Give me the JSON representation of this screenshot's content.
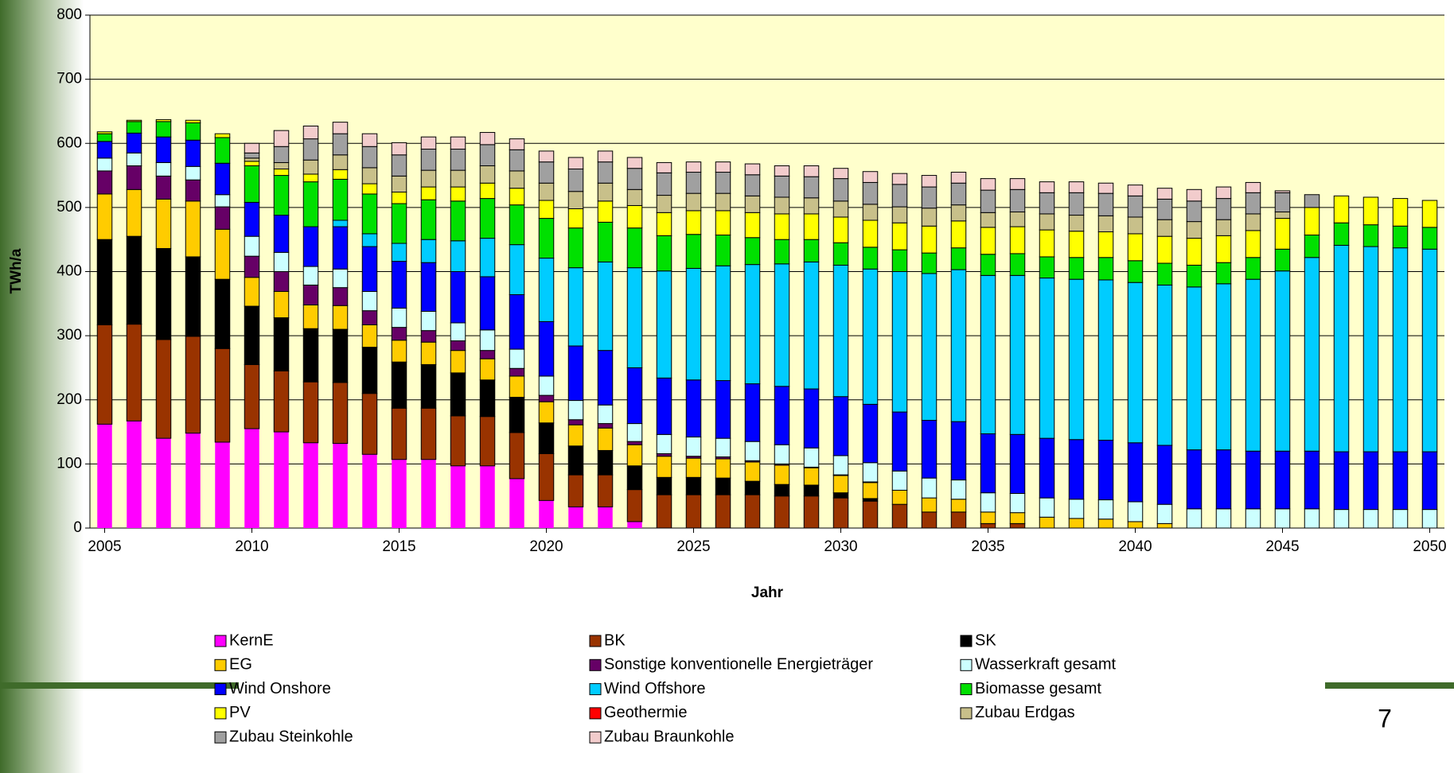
{
  "chart_data": {
    "type": "stacked_bar",
    "page_number": "7",
    "x_label": "Jahr",
    "y_label": "TWh/a",
    "categories": [
      2005,
      null,
      null,
      null,
      null,
      2010,
      null,
      null,
      null,
      null,
      2015,
      null,
      null,
      null,
      null,
      2020,
      null,
      null,
      null,
      null,
      2025,
      null,
      null,
      null,
      null,
      2030,
      null,
      null,
      null,
      null,
      2035,
      null,
      null,
      null,
      null,
      2040,
      null,
      null,
      null,
      null,
      2045,
      null,
      null,
      null,
      null,
      2050
    ],
    "ylim": [
      0,
      800
    ],
    "yticks": [
      0,
      100,
      200,
      300,
      400,
      500,
      600,
      700,
      800
    ],
    "grid": true,
    "legend": "bottom",
    "series": [
      {
        "name": "KernE",
        "color": "#ff00ff",
        "values": [
          162,
          167,
          140,
          148,
          134,
          155,
          150,
          133,
          132,
          115,
          107,
          107,
          97,
          97,
          77,
          43,
          33,
          33,
          10,
          0,
          0,
          0,
          0,
          0,
          0,
          0,
          0,
          0,
          0,
          0,
          0,
          0,
          0,
          0,
          0,
          0,
          0,
          0,
          0,
          0,
          0,
          0,
          0,
          0,
          0,
          0
        ]
      },
      {
        "name": "BK",
        "color": "#993300",
        "values": [
          155,
          151,
          154,
          151,
          146,
          100,
          95,
          95,
          95,
          95,
          80,
          80,
          78,
          77,
          72,
          73,
          50,
          50,
          50,
          52,
          52,
          52,
          52,
          50,
          50,
          47,
          42,
          37,
          25,
          25,
          7,
          7,
          0,
          0,
          0,
          0,
          0,
          0,
          0,
          0,
          0,
          0,
          0,
          0,
          0,
          0
        ]
      },
      {
        "name": "SK",
        "color": "#000000",
        "values": [
          133,
          137,
          142,
          124,
          108,
          91,
          83,
          83,
          83,
          72,
          72,
          68,
          67,
          57,
          55,
          48,
          45,
          38,
          37,
          27,
          27,
          26,
          21,
          18,
          17,
          8,
          4,
          0,
          0,
          0,
          0,
          0,
          0,
          0,
          0,
          0,
          0,
          0,
          0,
          0,
          0,
          0,
          0,
          0,
          0,
          0
        ]
      },
      {
        "name": "EG",
        "color": "#ffcc00",
        "values": [
          71,
          73,
          77,
          87,
          78,
          45,
          41,
          37,
          37,
          35,
          34,
          35,
          35,
          33,
          33,
          33,
          33,
          35,
          33,
          33,
          30,
          30,
          30,
          30,
          27,
          27,
          25,
          22,
          22,
          20,
          18,
          17,
          17,
          15,
          14,
          10,
          7,
          0,
          0,
          0,
          0,
          0,
          0,
          0,
          0,
          0
        ]
      },
      {
        "name": "Sonstige konventionelle Energieträger",
        "color": "#660066",
        "values": [
          36,
          37,
          36,
          33,
          35,
          33,
          31,
          31,
          28,
          22,
          20,
          18,
          15,
          13,
          12,
          10,
          8,
          7,
          5,
          4,
          3,
          3,
          2,
          2,
          1,
          1,
          1,
          0,
          0,
          0,
          0,
          0,
          0,
          0,
          0,
          0,
          0,
          0,
          0,
          0,
          0,
          0,
          0,
          0,
          0,
          0
        ]
      },
      {
        "name": "Wasserkraft gesamt",
        "color": "#ccffff",
        "values": [
          20,
          20,
          21,
          21,
          19,
          31,
          30,
          29,
          29,
          30,
          30,
          30,
          28,
          32,
          30,
          30,
          30,
          29,
          28,
          30,
          30,
          29,
          30,
          30,
          30,
          30,
          30,
          30,
          31,
          30,
          30,
          30,
          30,
          30,
          30,
          31,
          30,
          30,
          30,
          30,
          30,
          30,
          29,
          29,
          29,
          29
        ]
      },
      {
        "name": "Wind Onshore",
        "color": "#0000ff",
        "values": [
          26,
          31,
          40,
          41,
          49,
          53,
          58,
          62,
          66,
          70,
          73,
          76,
          80,
          83,
          85,
          85,
          85,
          85,
          87,
          88,
          89,
          90,
          90,
          91,
          92,
          92,
          91,
          92,
          90,
          91,
          92,
          92,
          93,
          93,
          93,
          92,
          92,
          92,
          92,
          90,
          90,
          90,
          90,
          90,
          90,
          90
        ]
      },
      {
        "name": "Wind Offshore",
        "color": "#00ccff",
        "values": [
          0,
          0,
          0,
          0,
          0,
          0,
          0,
          0,
          10,
          20,
          28,
          36,
          48,
          60,
          78,
          99,
          122,
          138,
          156,
          167,
          174,
          179,
          186,
          191,
          198,
          205,
          211,
          219,
          229,
          237,
          247,
          248,
          250,
          250,
          250,
          250,
          250,
          254,
          259,
          268,
          281,
          302,
          322,
          320,
          318,
          316
        ]
      },
      {
        "name": "Biomasse gesamt",
        "color": "#00e000",
        "values": [
          12,
          18,
          24,
          27,
          40,
          57,
          62,
          70,
          64,
          62,
          62,
          62,
          62,
          62,
          62,
          62,
          62,
          62,
          62,
          55,
          53,
          48,
          42,
          38,
          35,
          35,
          34,
          34,
          32,
          34,
          33,
          34,
          33,
          34,
          35,
          34,
          34,
          34,
          33,
          34,
          34,
          35,
          35,
          34,
          34,
          34
        ]
      },
      {
        "name": "PV",
        "color": "#ffff00",
        "values": [
          3,
          2,
          3,
          4,
          6,
          7,
          10,
          12,
          15,
          16,
          18,
          20,
          22,
          24,
          26,
          28,
          30,
          33,
          35,
          36,
          37,
          38,
          39,
          40,
          40,
          40,
          42,
          42,
          42,
          42,
          42,
          42,
          42,
          41,
          40,
          42,
          42,
          42,
          42,
          42,
          48,
          43,
          42,
          43,
          43,
          42
        ]
      },
      {
        "name": "Geothermie",
        "color": "#ff0000",
        "values": [
          0,
          0,
          0,
          0,
          0,
          0,
          0,
          0,
          0,
          0,
          0,
          0,
          0,
          0,
          0,
          0,
          0,
          0,
          0,
          0,
          0,
          0,
          0,
          0,
          0,
          0,
          0,
          0,
          0,
          0,
          0,
          0,
          0,
          0,
          0,
          0,
          0,
          0,
          0,
          0,
          0,
          0,
          0,
          0,
          0,
          0
        ]
      },
      {
        "name": "Zubau Erdgas",
        "color": "#c8c08a",
        "values": [
          0,
          0,
          0,
          0,
          0,
          5,
          10,
          22,
          23,
          25,
          25,
          26,
          26,
          27,
          27,
          27,
          27,
          28,
          25,
          27,
          27,
          27,
          26,
          26,
          25,
          25,
          25,
          25,
          28,
          25,
          23,
          23,
          25,
          25,
          25,
          26,
          26,
          26,
          25,
          26,
          10,
          0,
          0,
          0,
          0,
          0
        ]
      },
      {
        "name": "Zubau Steinkohle",
        "color": "#a0a0a0",
        "values": [
          0,
          0,
          0,
          0,
          0,
          8,
          25,
          33,
          33,
          33,
          33,
          33,
          33,
          33,
          33,
          33,
          35,
          33,
          33,
          35,
          33,
          33,
          33,
          33,
          33,
          35,
          34,
          35,
          33,
          34,
          35,
          35,
          33,
          35,
          35,
          33,
          32,
          32,
          33,
          33,
          30,
          20,
          0,
          0,
          0,
          0
        ]
      },
      {
        "name": "Zubau Braunkohle",
        "color": "#f2cccc",
        "values": [
          0,
          0,
          0,
          0,
          0,
          15,
          25,
          20,
          18,
          20,
          19,
          19,
          19,
          19,
          17,
          17,
          18,
          17,
          17,
          16,
          16,
          16,
          17,
          16,
          17,
          16,
          17,
          17,
          18,
          17,
          18,
          17,
          17,
          17,
          16,
          17,
          17,
          18,
          18,
          16,
          3,
          0,
          0,
          0,
          0,
          0
        ]
      }
    ]
  }
}
